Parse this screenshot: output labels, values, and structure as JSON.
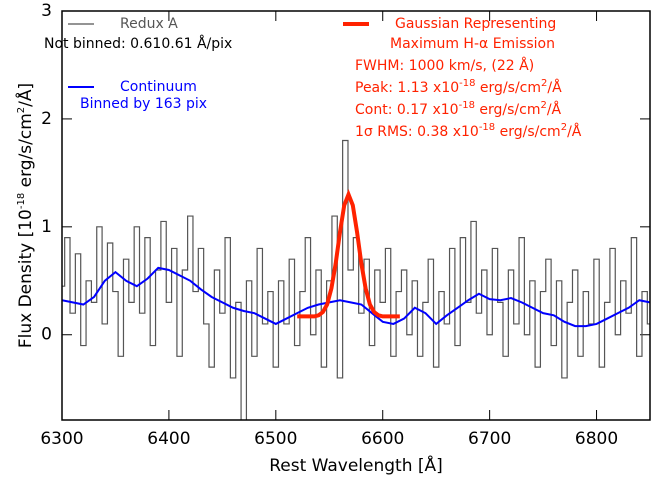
{
  "chart_data": {
    "type": "line",
    "x_label": "Rest Wavelength [Å]",
    "y_label": [
      "Flux Density [10",
      "-18",
      " erg/s/cm",
      "2",
      "/Å]"
    ],
    "xlim": [
      6300,
      6850
    ],
    "ylim": [
      -0.79,
      3
    ],
    "xticks": [
      6300,
      6400,
      6500,
      6600,
      6700,
      6800
    ],
    "yticks": [
      0,
      1,
      2,
      3
    ],
    "series": [
      {
        "name": "Redux A",
        "color": "#555555",
        "step": true,
        "width": 1.2,
        "x": [
          6300,
          6305,
          6310,
          6315,
          6320,
          6325,
          6330,
          6335,
          6340,
          6345,
          6350,
          6355,
          6360,
          6365,
          6370,
          6375,
          6380,
          6385,
          6390,
          6395,
          6400,
          6405,
          6410,
          6415,
          6420,
          6425,
          6430,
          6435,
          6440,
          6445,
          6450,
          6455,
          6460,
          6465,
          6470,
          6475,
          6480,
          6485,
          6490,
          6495,
          6500,
          6505,
          6510,
          6515,
          6520,
          6525,
          6530,
          6535,
          6540,
          6545,
          6550,
          6555,
          6560,
          6565,
          6570,
          6575,
          6580,
          6585,
          6590,
          6595,
          6600,
          6605,
          6610,
          6615,
          6620,
          6625,
          6630,
          6635,
          6640,
          6645,
          6650,
          6655,
          6660,
          6665,
          6670,
          6675,
          6680,
          6685,
          6690,
          6695,
          6700,
          6705,
          6710,
          6715,
          6720,
          6725,
          6730,
          6735,
          6740,
          6745,
          6750,
          6755,
          6760,
          6765,
          6770,
          6775,
          6780,
          6785,
          6790,
          6795,
          6800,
          6805,
          6810,
          6815,
          6820,
          6825,
          6830,
          6835,
          6840,
          6845,
          6850
        ],
        "values": [
          0.45,
          0.9,
          0.2,
          0.75,
          -0.1,
          0.5,
          0.3,
          1.0,
          0.1,
          0.85,
          0.4,
          -0.2,
          0.7,
          0.3,
          1.0,
          0.2,
          0.9,
          -0.1,
          0.6,
          1.05,
          0.3,
          0.8,
          -0.2,
          0.6,
          1.1,
          0.4,
          0.8,
          0.1,
          -0.3,
          0.6,
          0.2,
          0.9,
          -0.4,
          0.3,
          -0.8,
          0.5,
          -0.2,
          0.8,
          0.1,
          0.4,
          -0.3,
          0.5,
          0.1,
          0.7,
          -0.1,
          0.4,
          0.9,
          0.0,
          0.6,
          -0.3,
          0.5,
          1.1,
          -0.4,
          1.8,
          0.6,
          0.9,
          0.2,
          0.7,
          -0.1,
          0.6,
          0.3,
          0.8,
          -0.2,
          0.4,
          0.6,
          0.0,
          0.5,
          -0.2,
          0.3,
          0.7,
          -0.3,
          0.4,
          0.1,
          0.8,
          -0.1,
          0.9,
          0.3,
          1.05,
          0.2,
          0.6,
          0.0,
          0.8,
          0.3,
          -0.2,
          0.6,
          0.1,
          0.9,
          0.0,
          0.5,
          -0.3,
          0.4,
          0.7,
          -0.1,
          0.5,
          -0.4,
          0.3,
          0.6,
          -0.2,
          0.4,
          0.1,
          0.7,
          -0.3,
          0.3,
          0.8,
          0.0,
          0.5,
          0.2,
          0.9,
          -0.2,
          0.4,
          0.1
        ]
      },
      {
        "name": "Continuum",
        "color": "#0000ff",
        "width": 2,
        "x": [
          6300,
          6310,
          6320,
          6330,
          6340,
          6350,
          6360,
          6370,
          6380,
          6390,
          6400,
          6410,
          6420,
          6430,
          6440,
          6450,
          6460,
          6470,
          6480,
          6490,
          6500,
          6510,
          6520,
          6530,
          6540,
          6550,
          6560,
          6570,
          6580,
          6590,
          6600,
          6610,
          6620,
          6630,
          6640,
          6650,
          6660,
          6670,
          6680,
          6690,
          6700,
          6710,
          6720,
          6730,
          6740,
          6750,
          6760,
          6770,
          6780,
          6790,
          6800,
          6810,
          6820,
          6830,
          6840,
          6850
        ],
        "values": [
          0.32,
          0.3,
          0.28,
          0.35,
          0.5,
          0.58,
          0.5,
          0.45,
          0.52,
          0.62,
          0.6,
          0.55,
          0.5,
          0.42,
          0.35,
          0.3,
          0.25,
          0.22,
          0.2,
          0.15,
          0.1,
          0.15,
          0.2,
          0.25,
          0.28,
          0.3,
          0.32,
          0.3,
          0.28,
          0.2,
          0.12,
          0.1,
          0.15,
          0.25,
          0.2,
          0.1,
          0.18,
          0.25,
          0.32,
          0.38,
          0.33,
          0.32,
          0.34,
          0.3,
          0.25,
          0.2,
          0.18,
          0.12,
          0.08,
          0.08,
          0.1,
          0.15,
          0.2,
          0.25,
          0.32,
          0.3
        ]
      },
      {
        "name": "Gaussian Representing",
        "color": "#ff2200",
        "width": 4,
        "x": [
          6520,
          6524,
          6528,
          6532,
          6536,
          6540,
          6544,
          6548,
          6552,
          6556,
          6560,
          6564,
          6568,
          6572,
          6576,
          6580,
          6584,
          6588,
          6592,
          6596,
          6600,
          6604,
          6608,
          6612,
          6616
        ],
        "values": [
          0.17,
          0.17,
          0.17,
          0.17,
          0.17,
          0.18,
          0.21,
          0.28,
          0.43,
          0.66,
          0.95,
          1.2,
          1.3,
          1.2,
          0.95,
          0.66,
          0.43,
          0.28,
          0.21,
          0.18,
          0.17,
          0.17,
          0.17,
          0.17,
          0.17
        ]
      }
    ],
    "annotations": [
      {
        "color": "#000000",
        "parts": [
          "Not binned: 0.610.61 Å/pix"
        ]
      },
      {
        "color": "#0000ff",
        "parts": [
          "Binned by 163 pix"
        ]
      },
      {
        "color": "#ff2200",
        "parts": [
          "Maximum H-α Emission"
        ]
      },
      {
        "color": "#ff2200",
        "parts": [
          "FWHM: 1000 km/s, (22 Å)"
        ]
      },
      {
        "color": "#ff2200",
        "parts": [
          "Peak: 1.13 x10",
          "-18",
          " erg/s/cm",
          "2",
          "/Å"
        ]
      },
      {
        "color": "#ff2200",
        "parts": [
          "Cont: 0.17 x10",
          "-18",
          " erg/s/cm",
          "2",
          "/Å"
        ]
      },
      {
        "color": "#ff2200",
        "parts": [
          "1σ RMS: 0.38 x10",
          "-18",
          " erg/s/cm",
          "2",
          "/Å"
        ]
      }
    ]
  }
}
